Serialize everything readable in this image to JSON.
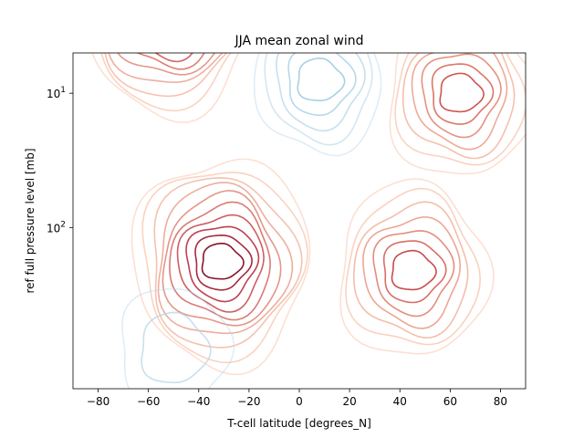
{
  "chart_data": {
    "type": "contour",
    "title": "JJA mean zonal wind",
    "xlabel": "T-cell latitude [degrees_N]",
    "ylabel": "ref full pressure level [mb]",
    "xlim": [
      -90,
      90
    ],
    "ylim_log10": [
      0.7,
      3.2
    ],
    "y_scale": "log",
    "y_inverted": true,
    "grid": false,
    "colormap": "RdBu_r",
    "x_ticks": [
      {
        "value": -80,
        "label": "−80"
      },
      {
        "value": -60,
        "label": "−60"
      },
      {
        "value": -40,
        "label": "−40"
      },
      {
        "value": -20,
        "label": "−20"
      },
      {
        "value": 0,
        "label": "0"
      },
      {
        "value": 20,
        "label": "20"
      },
      {
        "value": 40,
        "label": "40"
      },
      {
        "value": 60,
        "label": "60"
      },
      {
        "value": 80,
        "label": "80"
      }
    ],
    "y_ticks": [
      {
        "value": 10,
        "base": "10",
        "exp": "1"
      },
      {
        "value": 100,
        "base": "10",
        "exp": "2"
      }
    ],
    "centers": [
      {
        "name": "southern-jet",
        "lat": -31,
        "p": 180,
        "strength": 1.0,
        "rings": 10
      },
      {
        "name": "northern-jet",
        "lat": 45,
        "p": 210,
        "strength": 0.65,
        "rings": 7
      },
      {
        "name": "northern-stratospheric-max",
        "lat": 64,
        "p": 10,
        "strength": 0.6,
        "rings": 7
      },
      {
        "name": "southern-stratospheric-max",
        "lat": -52,
        "p": 2.5,
        "strength": 0.95,
        "rings": 10
      },
      {
        "name": "tropical-easterlies",
        "lat": 8,
        "p": 8,
        "strength": -0.35,
        "rings": 5
      },
      {
        "name": "surface-easterlies",
        "lat": -50,
        "p": 800,
        "strength": -0.12,
        "rings": 2
      }
    ]
  }
}
